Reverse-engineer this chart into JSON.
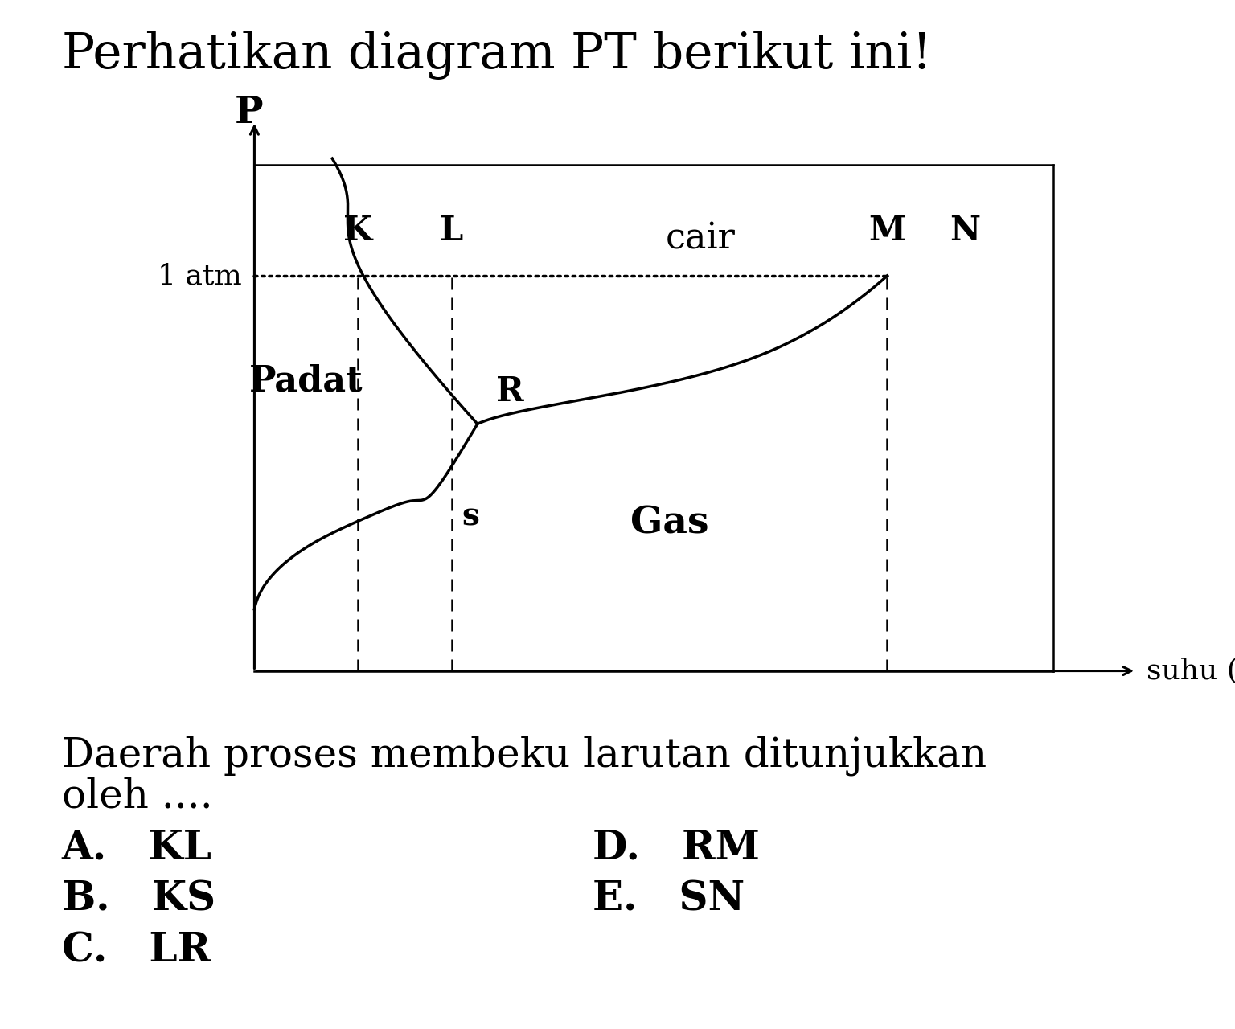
{
  "title": "Perhatikan diagram PT berikut ini!",
  "title_fontsize": 44,
  "xlabel": "suhu (°C)",
  "ylabel": "P",
  "atm_label": "1 atm",
  "phase_labels": [
    "Padat",
    "cair",
    "Gas"
  ],
  "point_labels": [
    "K",
    "L",
    "M",
    "N",
    "R",
    "s"
  ],
  "question_line1": "Daerah proses membeku larutan ditunjukkan",
  "question_line2": "oleh ....",
  "options_left": [
    "A.   KL",
    "B.   KS",
    "C.   LR"
  ],
  "options_right": [
    "D.   RM",
    "E.   SN"
  ],
  "bg_color": "#ffffff",
  "line_color": "#000000",
  "dashed_color": "#000000",
  "font_color": "#000000",
  "question_fontsize": 36,
  "option_fontsize": 36,
  "label_fontsize": 28,
  "point_fontsize": 26
}
